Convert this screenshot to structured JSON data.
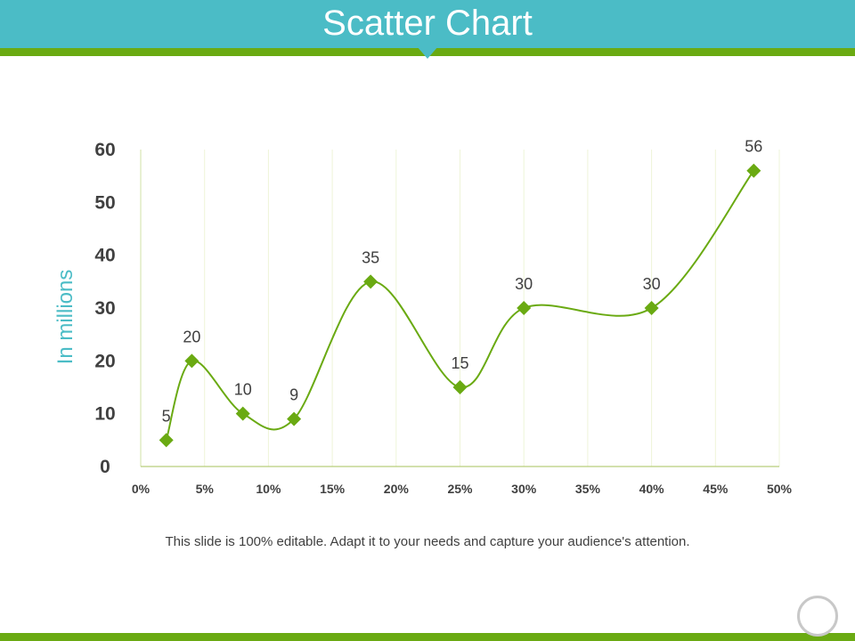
{
  "slide": {
    "title": "Scatter Chart",
    "caption": "This slide is 100% editable. Adapt it to your needs and capture your audience's attention."
  },
  "colors": {
    "header": "#4bbcc6",
    "accent": "#6aaa12",
    "series": "#6aaa12",
    "axis_label": "#4bbcc6"
  },
  "chart_data": {
    "type": "scatter",
    "title": "",
    "xlabel": "",
    "ylabel": "In millions",
    "xlim": [
      0,
      50
    ],
    "ylim": [
      0,
      60
    ],
    "x_ticks": [
      "0%",
      "5%",
      "10%",
      "15%",
      "20%",
      "25%",
      "30%",
      "35%",
      "40%",
      "45%",
      "50%"
    ],
    "y_ticks": [
      "0",
      "10",
      "20",
      "30",
      "40",
      "50",
      "60"
    ],
    "grid": "vertical",
    "smooth_line": true,
    "marker": "diamond",
    "series": [
      {
        "x": [
          2,
          4,
          8,
          12,
          18,
          25,
          30,
          40,
          48
        ],
        "y": [
          5,
          20,
          10,
          9,
          35,
          15,
          30,
          30,
          56
        ],
        "labels": [
          "5",
          "20",
          "10",
          "9",
          "35",
          "15",
          "30",
          "30",
          "56"
        ]
      }
    ]
  }
}
